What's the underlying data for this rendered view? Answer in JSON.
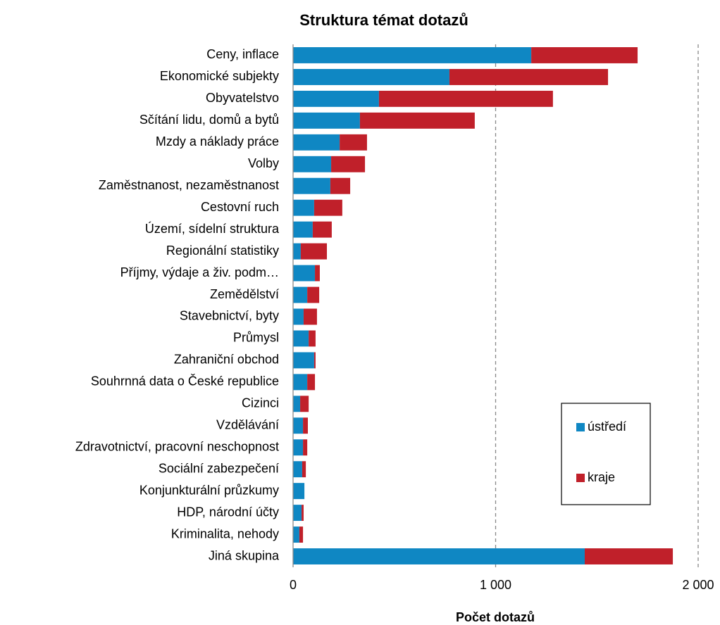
{
  "chart_data": {
    "type": "stacked-bar-horizontal",
    "title": "Struktura témat dotazů",
    "x_label": "Počet dotazů",
    "categories": [
      "Ceny, inflace",
      "Ekonomické subjekty",
      "Obyvatelstvo",
      "Sčítání lidu, domů a bytů",
      "Mzdy a náklady práce",
      "Volby",
      "Zaměstnanost, nezaměstnanost",
      "Cestovní ruch",
      "Území, sídelní struktura",
      "Regionální statistiky",
      "Příjmy, výdaje a živ. podm…",
      "Zemědělství",
      "Stavebnictví, byty",
      "Průmysl",
      "Zahraniční obchod",
      "Souhrnná data o České republice",
      "Cizinci",
      "Vzdělávání",
      "Zdravotnictví, pracovní neschopnost",
      "Sociální zabezpečení",
      "Konjunkturální průzkumy",
      "HDP, národní účty",
      "Kriminalita, nehody",
      "Jiná skupina"
    ],
    "series": [
      {
        "name": "ústředí",
        "color": "#0f87c3",
        "values": [
          1176,
          772,
          424,
          330,
          230,
          188,
          184,
          104,
          97,
          38,
          108,
          70,
          52,
          77,
          104,
          70,
          35,
          49,
          49,
          45,
          56,
          42,
          31,
          1440
        ]
      },
      {
        "name": "kraje",
        "color": "#c0202a",
        "values": [
          525,
          783,
          859,
          567,
          135,
          167,
          98,
          139,
          94,
          129,
          24,
          59,
          66,
          34,
          7,
          38,
          42,
          24,
          21,
          18,
          0,
          10,
          18,
          435
        ]
      }
    ],
    "xlim": [
      0,
      2000
    ],
    "xticks": [
      0,
      {
        "value": 1000,
        "label": "1 000"
      },
      {
        "value": 2000,
        "label": "2 000"
      }
    ],
    "grid": true,
    "legend": "lower right"
  }
}
